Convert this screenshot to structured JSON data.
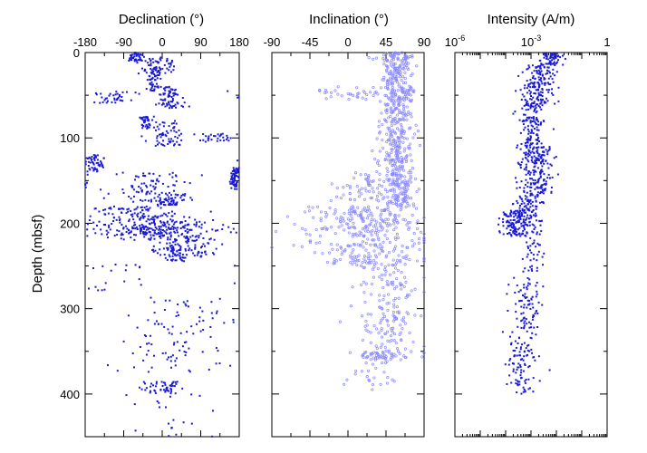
{
  "chart_data": [
    {
      "type": "scatter",
      "title": "Declination (°)",
      "ylabel": "Depth (mbsf)",
      "xlim": [
        -180,
        180
      ],
      "ylim": [
        0,
        450
      ],
      "xticks": [
        "-180",
        "-90",
        "0",
        "90",
        "180"
      ],
      "yticks": [
        "0",
        "100",
        "200",
        "300",
        "400"
      ],
      "color": "#1a1ad6",
      "marker": "filled-dot",
      "clusters": [
        {
          "d0": 0,
          "d1": 10,
          "x": -60,
          "spread": 20,
          "n": 40
        },
        {
          "d0": 5,
          "d1": 25,
          "x": -10,
          "spread": 40,
          "n": 60
        },
        {
          "d0": 20,
          "d1": 45,
          "x": -20,
          "spread": 15,
          "n": 50
        },
        {
          "d0": 40,
          "d1": 65,
          "x": 20,
          "spread": 30,
          "n": 70
        },
        {
          "d0": 45,
          "d1": 60,
          "x": -120,
          "spread": 50,
          "n": 40
        },
        {
          "d0": 75,
          "d1": 90,
          "x": -40,
          "spread": 15,
          "n": 40
        },
        {
          "d0": 80,
          "d1": 110,
          "x": 10,
          "spread": 40,
          "n": 60
        },
        {
          "d0": 95,
          "d1": 105,
          "x": 120,
          "spread": 50,
          "n": 30
        },
        {
          "d0": 120,
          "d1": 140,
          "x": -160,
          "spread": 20,
          "n": 60
        },
        {
          "d0": 135,
          "d1": 160,
          "x": 170,
          "spread": 15,
          "n": 70
        },
        {
          "d0": 140,
          "d1": 175,
          "x": -30,
          "spread": 80,
          "n": 90
        },
        {
          "d0": 165,
          "d1": 180,
          "x": 20,
          "spread": 40,
          "n": 50
        },
        {
          "d0": 180,
          "d1": 215,
          "x": -60,
          "spread": 110,
          "n": 200
        },
        {
          "d0": 195,
          "d1": 220,
          "x": 30,
          "spread": 120,
          "n": 120
        },
        {
          "d0": 215,
          "d1": 240,
          "x": 40,
          "spread": 90,
          "n": 100
        },
        {
          "d0": 230,
          "d1": 245,
          "x": 30,
          "spread": 30,
          "n": 40
        },
        {
          "d0": 245,
          "d1": 280,
          "x": -100,
          "spread": 90,
          "n": 20
        },
        {
          "d0": 285,
          "d1": 330,
          "x": 30,
          "spread": 120,
          "n": 50
        },
        {
          "d0": 330,
          "d1": 375,
          "x": 30,
          "spread": 120,
          "n": 50
        },
        {
          "d0": 385,
          "d1": 400,
          "x": 0,
          "spread": 50,
          "n": 50
        },
        {
          "d0": 400,
          "d1": 450,
          "x": 20,
          "spread": 90,
          "n": 20
        }
      ]
    },
    {
      "type": "scatter",
      "title": "Inclination (°)",
      "xlim": [
        -90,
        90
      ],
      "ylim": [
        0,
        450
      ],
      "xticks": [
        "-90",
        "-45",
        "0",
        "45",
        "90"
      ],
      "color": "#8a8aff",
      "marker": "open-circle",
      "clusters": [
        {
          "d0": 0,
          "d1": 180,
          "x": 58,
          "spread": 20,
          "n": 550
        },
        {
          "d0": 40,
          "d1": 55,
          "x": 10,
          "spread": 60,
          "n": 40
        },
        {
          "d0": 140,
          "d1": 175,
          "x": 20,
          "spread": 45,
          "n": 60
        },
        {
          "d0": 180,
          "d1": 250,
          "x": 20,
          "spread": 70,
          "n": 330
        },
        {
          "d0": 250,
          "d1": 300,
          "x": 50,
          "spread": 35,
          "n": 70
        },
        {
          "d0": 300,
          "d1": 365,
          "x": 50,
          "spread": 35,
          "n": 100
        },
        {
          "d0": 350,
          "d1": 360,
          "x": 40,
          "spread": 40,
          "n": 40
        },
        {
          "d0": 365,
          "d1": 400,
          "x": 30,
          "spread": 30,
          "n": 20
        }
      ]
    },
    {
      "type": "scatter",
      "title": "Intensity (A/m)",
      "xscale": "log",
      "xlim": [
        1e-06,
        1
      ],
      "ylim": [
        0,
        450
      ],
      "xtick_labels": [
        {
          "base": "10",
          "exp": "-6"
        },
        {
          "base": "10",
          "exp": "-3"
        },
        {
          "base": "1",
          "exp": ""
        }
      ],
      "color": "#1a1ad6",
      "marker": "filled-dot",
      "clusters": [
        {
          "d0": 0,
          "d1": 15,
          "logx": -2.2,
          "spread": 0.6,
          "n": 60
        },
        {
          "d0": 15,
          "d1": 60,
          "logx": -2.7,
          "spread": 0.6,
          "n": 160
        },
        {
          "d0": 60,
          "d1": 110,
          "logx": -3.0,
          "spread": 0.5,
          "n": 120
        },
        {
          "d0": 110,
          "d1": 165,
          "logx": -2.8,
          "spread": 0.7,
          "n": 200
        },
        {
          "d0": 165,
          "d1": 185,
          "logx": -3.1,
          "spread": 0.5,
          "n": 60
        },
        {
          "d0": 185,
          "d1": 215,
          "logx": -3.5,
          "spread": 0.8,
          "n": 180
        },
        {
          "d0": 215,
          "d1": 270,
          "logx": -2.9,
          "spread": 0.5,
          "n": 40
        },
        {
          "d0": 270,
          "d1": 340,
          "logx": -3.2,
          "spread": 0.6,
          "n": 90
        },
        {
          "d0": 340,
          "d1": 390,
          "logx": -3.4,
          "spread": 0.6,
          "n": 80
        },
        {
          "d0": 390,
          "d1": 400,
          "logx": -3.3,
          "spread": 0.3,
          "n": 10
        }
      ]
    }
  ]
}
